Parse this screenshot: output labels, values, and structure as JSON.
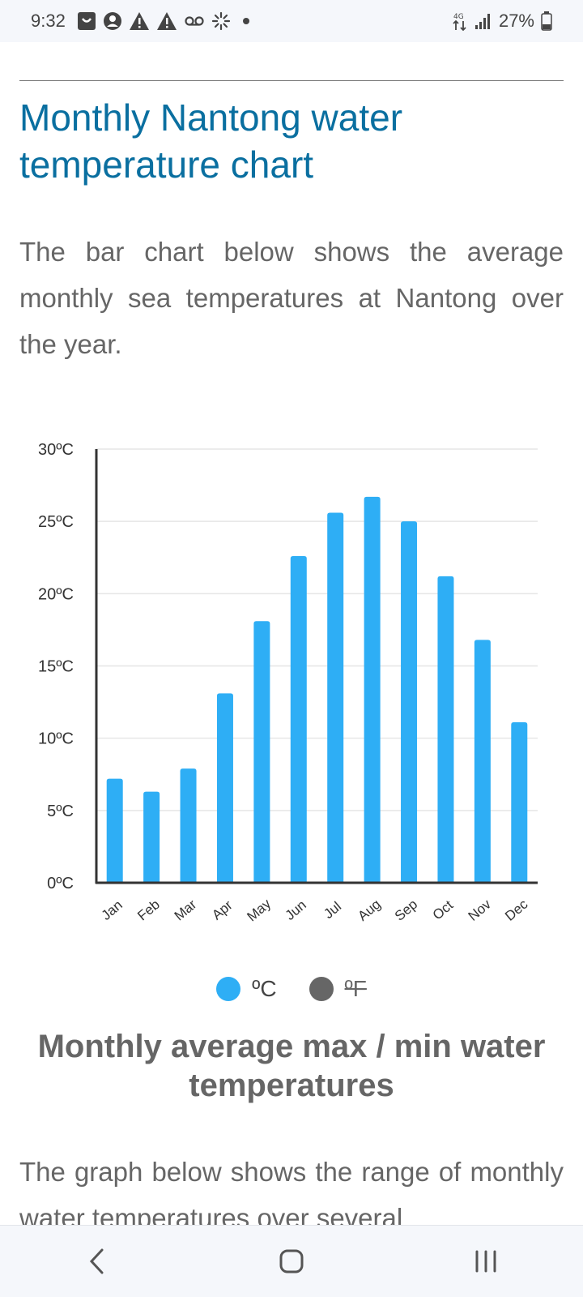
{
  "status_bar": {
    "time": "9:32",
    "battery": "27%",
    "icons_left": [
      "bag-icon",
      "account-icon",
      "warning-icon",
      "warning-icon",
      "voicemail-icon",
      "asterisk-icon",
      "dot-icon"
    ],
    "icons_right": [
      "data-transfer-icon",
      "signal-icon",
      "battery-icon"
    ]
  },
  "page": {
    "title": "Monthly Nantong water temperature chart",
    "intro": "The bar chart below shows the average monthly sea temperatures at Nantong over the year.",
    "section_heading": "Monthly average max / min water temperatures",
    "paragraph2": "The graph below shows the range of monthly water temperatures over several"
  },
  "legend": {
    "celsius_label": "ºC",
    "fahrenheit_label": "ºF",
    "celsius_color": "#2eaef5",
    "fahrenheit_color": "#666666"
  },
  "chart_data": {
    "type": "bar",
    "categories": [
      "Jan",
      "Feb",
      "Mar",
      "Apr",
      "May",
      "Jun",
      "Jul",
      "Aug",
      "Sep",
      "Oct",
      "Nov",
      "Dec"
    ],
    "series": [
      {
        "name": "ºC",
        "values": [
          7.2,
          6.3,
          7.9,
          13.1,
          18.1,
          22.6,
          25.6,
          26.7,
          25.0,
          21.2,
          16.8,
          11.1
        ]
      }
    ],
    "ylim": [
      0,
      30
    ],
    "yticks": [
      0,
      5,
      10,
      15,
      20,
      25,
      30
    ],
    "ytick_labels": [
      "0ºC",
      "5ºC",
      "10ºC",
      "15ºC",
      "20ºC",
      "25ºC",
      "30ºC"
    ],
    "grid": true,
    "bar_color": "#2eaef5"
  }
}
